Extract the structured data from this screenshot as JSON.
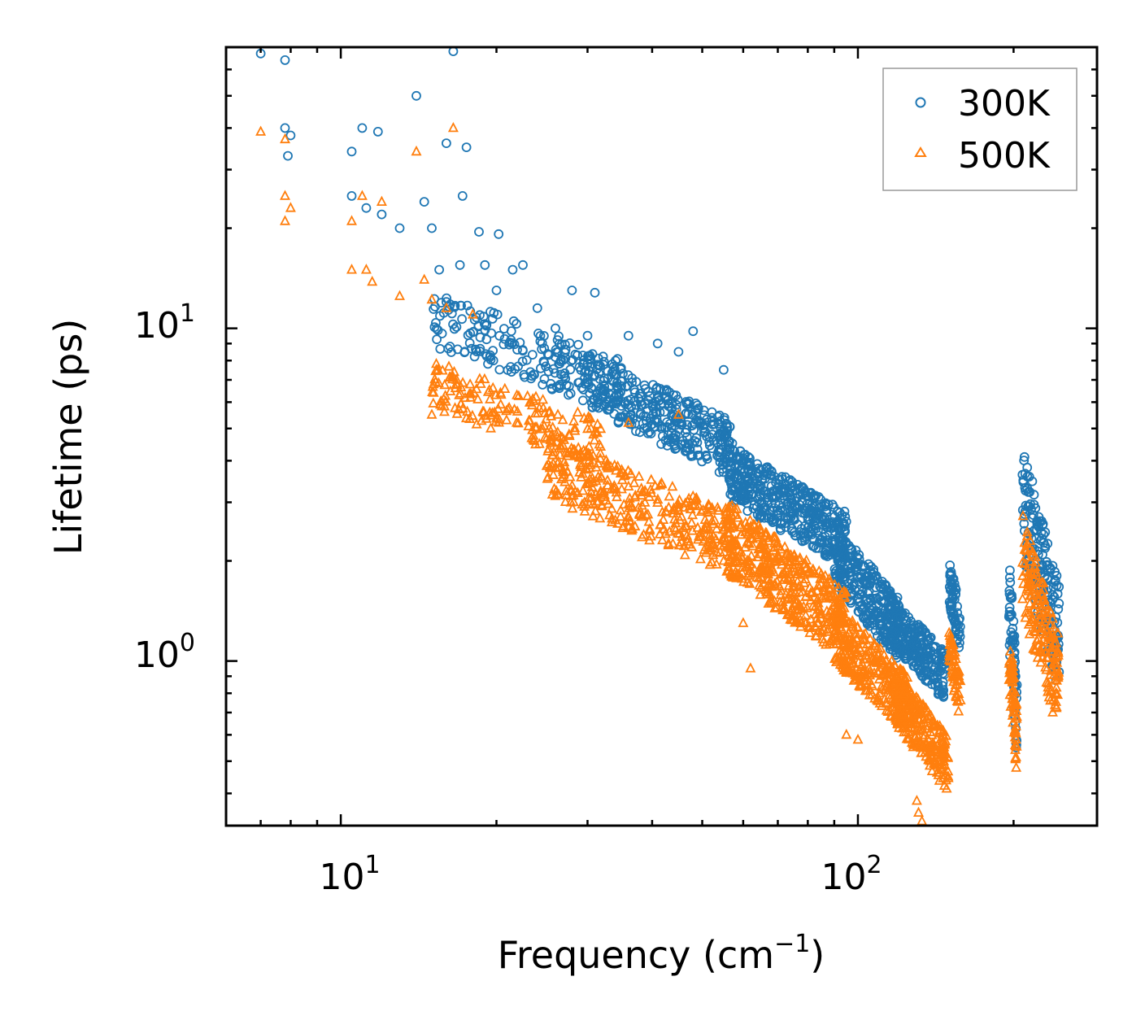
{
  "chart_data": {
    "type": "scatter",
    "xscale": "log",
    "yscale": "log",
    "xlabel": "Frequency (cm",
    "xlabel_sup": "−1",
    "xlabel_end": ")",
    "ylabel": "Lifetime (ps)",
    "xlim": [
      6.0,
      290.0
    ],
    "ylim": [
      0.32,
      70.0
    ],
    "x_ticks": [
      {
        "base": "10",
        "exp": "1",
        "value": 10
      },
      {
        "base": "10",
        "exp": "2",
        "value": 100
      }
    ],
    "y_ticks": [
      {
        "base": "10",
        "exp": "0",
        "value": 1
      },
      {
        "base": "10",
        "exp": "1",
        "value": 10
      }
    ],
    "legend": {
      "position": "top-right",
      "entries": [
        "300K",
        "500K"
      ]
    },
    "series": [
      {
        "name": "300K",
        "marker": "circle",
        "color": "#1f77b4",
        "points": [
          [
            7.0,
            67
          ],
          [
            7.8,
            64
          ],
          [
            7.8,
            40
          ],
          [
            8.0,
            38
          ],
          [
            7.9,
            33
          ],
          [
            10.5,
            34
          ],
          [
            11.0,
            40
          ],
          [
            11.8,
            39
          ],
          [
            14.0,
            50
          ],
          [
            16.5,
            68
          ],
          [
            16.0,
            36
          ],
          [
            17.5,
            35
          ],
          [
            10.5,
            25
          ],
          [
            11.2,
            23
          ],
          [
            12.0,
            22
          ],
          [
            13.0,
            20
          ],
          [
            14.5,
            24
          ],
          [
            15.0,
            20
          ],
          [
            17.2,
            25
          ],
          [
            18.5,
            19.5
          ],
          [
            20.2,
            19.2
          ],
          [
            15.5,
            15
          ],
          [
            17.0,
            15.5
          ],
          [
            19.0,
            15.5
          ],
          [
            21.5,
            15
          ],
          [
            22.5,
            15.5
          ],
          [
            28.0,
            13
          ],
          [
            31.0,
            12.8
          ],
          [
            16.0,
            12
          ],
          [
            20.0,
            13
          ],
          [
            24.0,
            11.5
          ],
          [
            26.0,
            10
          ],
          [
            30.0,
            9.5
          ],
          [
            34.0,
            8
          ],
          [
            36.0,
            9.5
          ],
          [
            41.0,
            9
          ],
          [
            45.0,
            8.5
          ],
          [
            48.0,
            9.8
          ],
          [
            55.0,
            7.5
          ]
        ],
        "clusters": [
          {
            "x": [
              15.0,
              35.0
            ],
            "y": [
              5.5,
              13.0
            ],
            "n": 200
          },
          {
            "x": [
              30.0,
              58.0
            ],
            "y": [
              3.5,
              8.5
            ],
            "n": 350
          },
          {
            "x": [
              56.0,
              95.0
            ],
            "y": [
              1.9,
              4.5
            ],
            "n": 450
          },
          {
            "x": [
              90.0,
              120.0
            ],
            "y": [
              1.0,
              2.6
            ],
            "n": 300
          },
          {
            "x": [
              115.0,
              148.0
            ],
            "y": [
              0.75,
              1.6
            ],
            "n": 250
          },
          {
            "x": [
              150.0,
              158.0
            ],
            "y": [
              1.0,
              2.1
            ],
            "n": 60
          },
          {
            "x": [
              196.0,
              203.0
            ],
            "y": [
              0.5,
              2.1
            ],
            "n": 70
          },
          {
            "x": [
              208.0,
              245.0
            ],
            "y": [
              0.8,
              4.5
            ],
            "n": 180
          }
        ]
      },
      {
        "name": "500K",
        "marker": "triangle",
        "color": "#ff7f0e",
        "points": [
          [
            7.0,
            39
          ],
          [
            7.8,
            37
          ],
          [
            7.8,
            25
          ],
          [
            8.0,
            23
          ],
          [
            7.8,
            21
          ],
          [
            10.5,
            21
          ],
          [
            11.0,
            25
          ],
          [
            12.0,
            24
          ],
          [
            14.0,
            34
          ],
          [
            16.5,
            40
          ],
          [
            10.5,
            15
          ],
          [
            11.2,
            15
          ],
          [
            11.5,
            13.8
          ],
          [
            13.0,
            12.5
          ],
          [
            14.5,
            14
          ],
          [
            15.0,
            12.2
          ],
          [
            16.0,
            11.5
          ],
          [
            18.0,
            11
          ],
          [
            15.0,
            5.5
          ],
          [
            19.5,
            5
          ],
          [
            36.0,
            5.2
          ],
          [
            45.0,
            5.5
          ],
          [
            55.0,
            2.3
          ],
          [
            55.0,
            2.0
          ],
          [
            57.0,
            1.8
          ],
          [
            62.0,
            0.95
          ],
          [
            60.0,
            1.3
          ],
          [
            95.0,
            0.6
          ],
          [
            100.0,
            0.58
          ],
          [
            130.0,
            0.38
          ],
          [
            131.0,
            0.35
          ],
          [
            133.0,
            0.33
          ]
        ],
        "clusters": [
          {
            "x": [
              15.0,
              32.0
            ],
            "y": [
              3.8,
              8.0
            ],
            "n": 180
          },
          {
            "x": [
              25.0,
              58.0
            ],
            "y": [
              1.8,
              4.8
            ],
            "n": 350
          },
          {
            "x": [
              56.0,
              95.0
            ],
            "y": [
              1.0,
              3.0
            ],
            "n": 450
          },
          {
            "x": [
              90.0,
              125.0
            ],
            "y": [
              0.6,
              1.5
            ],
            "n": 300
          },
          {
            "x": [
              118.0,
              150.0
            ],
            "y": [
              0.4,
              0.95
            ],
            "n": 250
          },
          {
            "x": [
              150.0,
              158.0
            ],
            "y": [
              0.65,
              1.3
            ],
            "n": 60
          },
          {
            "x": [
              196.0,
              203.0
            ],
            "y": [
              0.45,
              1.3
            ],
            "n": 70
          },
          {
            "x": [
              208.0,
              245.0
            ],
            "y": [
              0.6,
              2.8
            ],
            "n": 180
          }
        ]
      }
    ]
  }
}
